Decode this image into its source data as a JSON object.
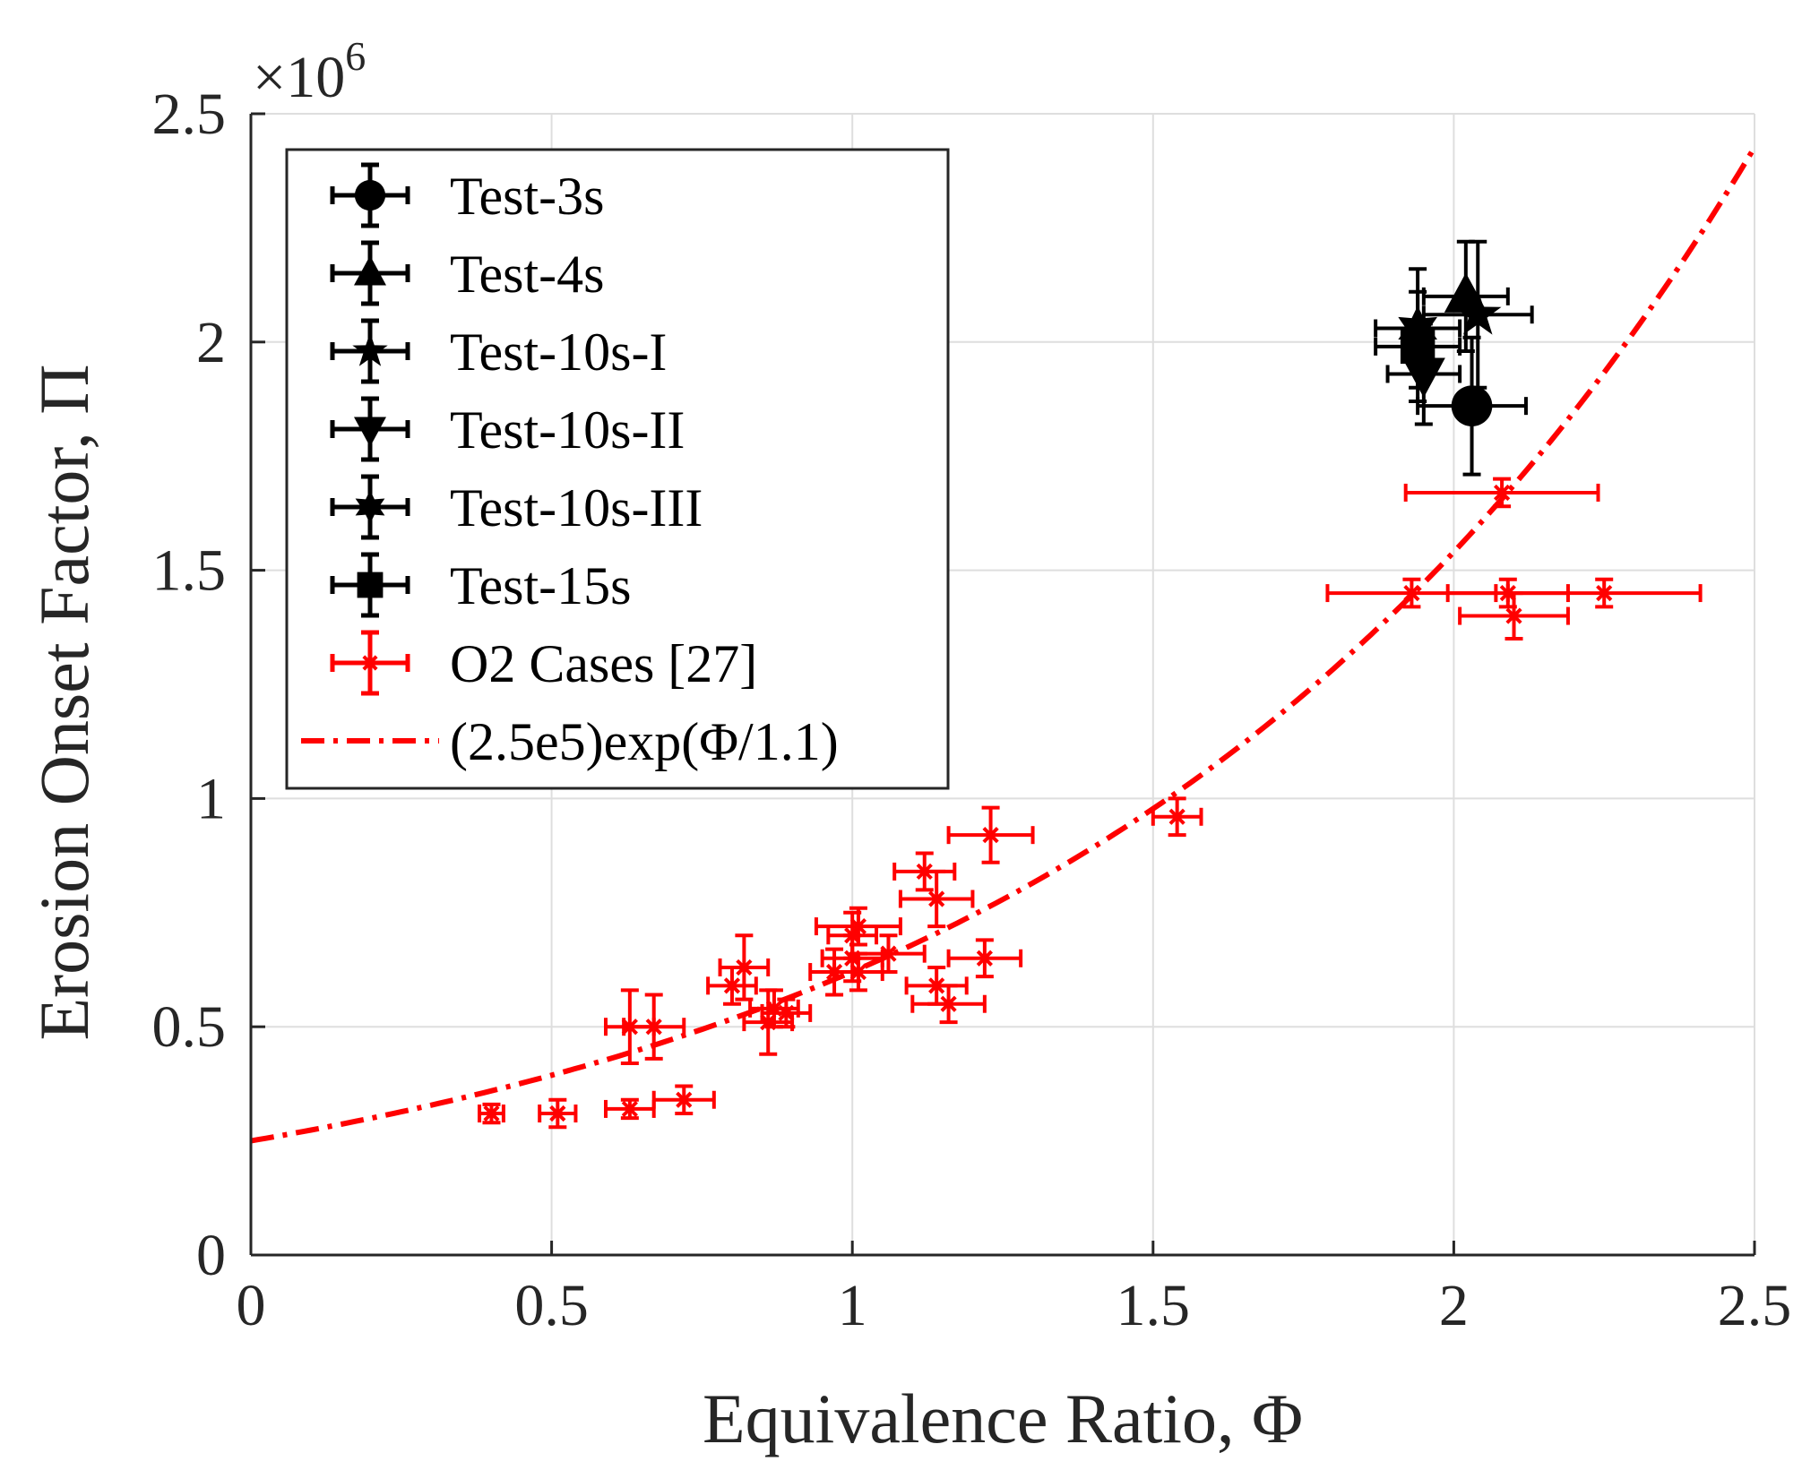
{
  "chart_data": {
    "type": "scatter",
    "title": "",
    "xlabel": "Equivalence Ratio, Φ",
    "ylabel": "Erosion Onset Factor, Π",
    "xlim": [
      0,
      2.5
    ],
    "ylim": [
      0,
      2.5
    ],
    "y_exponent_label": "×10",
    "y_exponent_power": "6",
    "xticks": [
      0,
      0.5,
      1,
      1.5,
      2,
      2.5
    ],
    "xtick_labels": [
      "0",
      "0.5",
      "1",
      "1.5",
      "2",
      "2.5"
    ],
    "yticks": [
      0,
      0.5,
      1,
      1.5,
      2,
      2.5
    ],
    "ytick_labels": [
      "0",
      "0.5",
      "1",
      "1.5",
      "2",
      "2.5"
    ],
    "grid": true,
    "legend_position": "top-left",
    "series": [
      {
        "name": "Test-3s",
        "marker": "circle",
        "color": "#000000",
        "points": [
          {
            "x": 2.03,
            "y": 1.86,
            "xerr": 0.09,
            "yerr": 0.15
          }
        ]
      },
      {
        "name": "Test-4s",
        "marker": "triangle-up",
        "color": "#000000",
        "points": [
          {
            "x": 2.02,
            "y": 2.1,
            "xerr": 0.07,
            "yerr": 0.12
          }
        ]
      },
      {
        "name": "Test-10s-I",
        "marker": "star",
        "color": "#000000",
        "points": [
          {
            "x": 2.04,
            "y": 2.06,
            "xerr": 0.09,
            "yerr": 0.16
          }
        ]
      },
      {
        "name": "Test-10s-II",
        "marker": "triangle-down",
        "color": "#000000",
        "points": [
          {
            "x": 1.95,
            "y": 1.93,
            "xerr": 0.06,
            "yerr": 0.11
          }
        ]
      },
      {
        "name": "Test-10s-III",
        "marker": "hexagram",
        "color": "#000000",
        "points": [
          {
            "x": 1.94,
            "y": 2.03,
            "xerr": 0.07,
            "yerr": 0.13
          }
        ]
      },
      {
        "name": "Test-15s",
        "marker": "square",
        "color": "#000000",
        "points": [
          {
            "x": 1.94,
            "y": 1.99,
            "xerr": 0.07,
            "yerr": 0.12
          }
        ]
      },
      {
        "name": "O2 Cases [27]",
        "marker": "x",
        "color": "#ff0000",
        "points": [
          {
            "x": 0.4,
            "y": 0.31,
            "xerr": 0.02,
            "yerr": 0.02
          },
          {
            "x": 0.51,
            "y": 0.31,
            "xerr": 0.03,
            "yerr": 0.03
          },
          {
            "x": 0.63,
            "y": 0.32,
            "xerr": 0.04,
            "yerr": 0.02
          },
          {
            "x": 0.72,
            "y": 0.34,
            "xerr": 0.05,
            "yerr": 0.03
          },
          {
            "x": 0.63,
            "y": 0.5,
            "xerr": 0.04,
            "yerr": 0.08
          },
          {
            "x": 0.67,
            "y": 0.5,
            "xerr": 0.05,
            "yerr": 0.07
          },
          {
            "x": 0.8,
            "y": 0.59,
            "xerr": 0.04,
            "yerr": 0.04
          },
          {
            "x": 0.82,
            "y": 0.63,
            "xerr": 0.04,
            "yerr": 0.07
          },
          {
            "x": 0.86,
            "y": 0.51,
            "xerr": 0.04,
            "yerr": 0.07
          },
          {
            "x": 0.87,
            "y": 0.54,
            "xerr": 0.04,
            "yerr": 0.04
          },
          {
            "x": 0.89,
            "y": 0.53,
            "xerr": 0.04,
            "yerr": 0.03
          },
          {
            "x": 0.97,
            "y": 0.62,
            "xerr": 0.04,
            "yerr": 0.05
          },
          {
            "x": 1.0,
            "y": 0.7,
            "xerr": 0.04,
            "yerr": 0.05
          },
          {
            "x": 1.0,
            "y": 0.65,
            "xerr": 0.05,
            "yerr": 0.05
          },
          {
            "x": 1.01,
            "y": 0.72,
            "xerr": 0.07,
            "yerr": 0.04
          },
          {
            "x": 1.01,
            "y": 0.62,
            "xerr": 0.04,
            "yerr": 0.04
          },
          {
            "x": 1.06,
            "y": 0.66,
            "xerr": 0.06,
            "yerr": 0.04
          },
          {
            "x": 1.12,
            "y": 0.84,
            "xerr": 0.05,
            "yerr": 0.04
          },
          {
            "x": 1.14,
            "y": 0.78,
            "xerr": 0.06,
            "yerr": 0.06
          },
          {
            "x": 1.14,
            "y": 0.59,
            "xerr": 0.05,
            "yerr": 0.04
          },
          {
            "x": 1.16,
            "y": 0.55,
            "xerr": 0.06,
            "yerr": 0.04
          },
          {
            "x": 1.22,
            "y": 0.65,
            "xerr": 0.06,
            "yerr": 0.04
          },
          {
            "x": 1.23,
            "y": 0.92,
            "xerr": 0.07,
            "yerr": 0.06
          },
          {
            "x": 1.54,
            "y": 0.96,
            "xerr": 0.04,
            "yerr": 0.04
          },
          {
            "x": 1.93,
            "y": 1.45,
            "xerr": 0.14,
            "yerr": 0.03
          },
          {
            "x": 2.08,
            "y": 1.67,
            "xerr": 0.16,
            "yerr": 0.03
          },
          {
            "x": 2.09,
            "y": 1.45,
            "xerr": 0.1,
            "yerr": 0.03
          },
          {
            "x": 2.1,
            "y": 1.4,
            "xerr": 0.09,
            "yerr": 0.05
          },
          {
            "x": 2.25,
            "y": 1.45,
            "xerr": 0.16,
            "yerr": 0.03
          }
        ]
      }
    ],
    "fit": {
      "name": "(2.5e5)exp(Φ/1.1)",
      "a": 0.25,
      "b": 1.1,
      "x_range": [
        0,
        2.5
      ],
      "style": "dash-dot",
      "color": "#ff0000"
    }
  }
}
